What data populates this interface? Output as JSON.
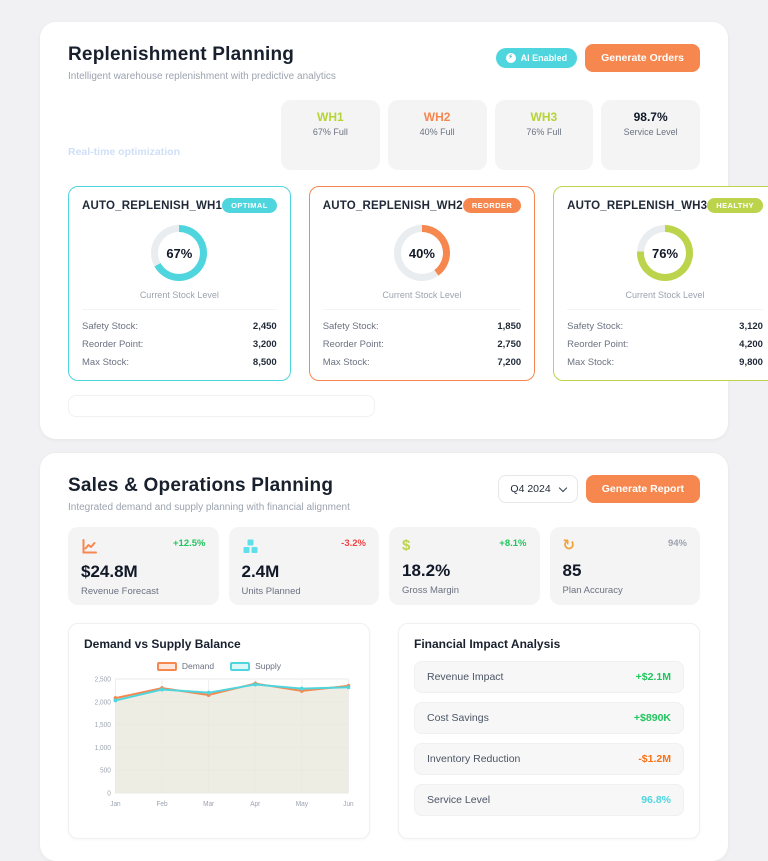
{
  "replenishment": {
    "title": "Replenishment Planning",
    "subtitle": "Intelligent warehouse replenishment with predictive analytics",
    "ai_badge": "AI Enabled",
    "generate_button": "Generate Orders",
    "watermark": "Real-time optimization",
    "warehouses": [
      {
        "name": "WH1",
        "detail": "67% Full",
        "color": "#b5d335"
      },
      {
        "name": "WH2",
        "detail": "40% Full",
        "color": "#f6874f"
      },
      {
        "name": "WH3",
        "detail": "76% Full",
        "color": "#b5d335"
      },
      {
        "name": "98.7%",
        "detail": "Service Level",
        "color": "#111827"
      }
    ],
    "cards": [
      {
        "title": "AUTO_REPLENISH_WH1",
        "badge": "OPTIMAL",
        "color": "#4fd5de",
        "percent": 67,
        "percent_label": "67%",
        "gauge_label": "Current Stock Level",
        "stats": [
          {
            "label": "Safety Stock:",
            "value": "2,450"
          },
          {
            "label": "Reorder Point:",
            "value": "3,200"
          },
          {
            "label": "Max Stock:",
            "value": "8,500"
          }
        ]
      },
      {
        "title": "AUTO_REPLENISH_WH2",
        "badge": "REORDER",
        "color": "#f6874f",
        "percent": 40,
        "percent_label": "40%",
        "gauge_label": "Current Stock Level",
        "stats": [
          {
            "label": "Safety Stock:",
            "value": "1,850"
          },
          {
            "label": "Reorder Point:",
            "value": "2,750"
          },
          {
            "label": "Max Stock:",
            "value": "7,200"
          }
        ]
      },
      {
        "title": "AUTO_REPLENISH_WH3",
        "badge": "HEALTHY",
        "color": "#bcd44c",
        "percent": 76,
        "percent_label": "76%",
        "gauge_label": "Current Stock Level",
        "stats": [
          {
            "label": "Safety Stock:",
            "value": "3,120"
          },
          {
            "label": "Reorder Point:",
            "value": "4,200"
          },
          {
            "label": "Max Stock:",
            "value": "9,800"
          }
        ]
      }
    ]
  },
  "sop": {
    "title": "Sales & Operations Planning",
    "subtitle": "Integrated demand and supply planning with financial alignment",
    "period_select": "Q4 2024",
    "generate_button": "Generate Report",
    "kpis": [
      {
        "icon": "chart-line-icon",
        "icon_color": "#f6874f",
        "delta": "+12.5%",
        "delta_color": "#22c55e",
        "value": "$24.8M",
        "label": "Revenue Forecast"
      },
      {
        "icon": "boxes-icon",
        "icon_color": "#5ee0ea",
        "delta": "-3.2%",
        "delta_color": "#ef4444",
        "value": "2.4M",
        "label": "Units Planned"
      },
      {
        "icon": "dollar-icon",
        "icon_color": "#bcd44c",
        "delta": "+8.1%",
        "delta_color": "#22c55e",
        "value": "18.2%",
        "label": "Gross Margin"
      },
      {
        "icon": "sync-icon",
        "icon_color": "#f2a33c",
        "delta": "94%",
        "delta_color": "#9ca3af",
        "value": "85",
        "label": "Plan Accuracy"
      }
    ],
    "financial": {
      "title": "Financial Impact Analysis",
      "rows": [
        {
          "label": "Revenue Impact",
          "value": "+$2.1M",
          "color": "#22c55e"
        },
        {
          "label": "Cost Savings",
          "value": "+$890K",
          "color": "#22c55e"
        },
        {
          "label": "Inventory Reduction",
          "value": "-$1.2M",
          "color": "#f97316"
        },
        {
          "label": "Service Level",
          "value": "96.8%",
          "color": "#4fd5de"
        }
      ]
    }
  },
  "chart_data": {
    "type": "line",
    "title": "Demand vs Supply Balance",
    "x": [
      "Jan",
      "Feb",
      "Mar",
      "Apr",
      "May",
      "Jun"
    ],
    "series": [
      {
        "name": "Demand",
        "color": "#f6874f",
        "values": [
          2080,
          2300,
          2150,
          2400,
          2240,
          2350
        ]
      },
      {
        "name": "Supply",
        "color": "#4fd5de",
        "values": [
          2030,
          2270,
          2200,
          2380,
          2290,
          2320
        ]
      }
    ],
    "ylim": [
      0,
      2500
    ],
    "yticks": [
      "0",
      "500",
      "1,000",
      "1,500",
      "2,000",
      "2,500"
    ],
    "grid": true,
    "legend_position": "top",
    "area_fill": "#e9eadf"
  }
}
